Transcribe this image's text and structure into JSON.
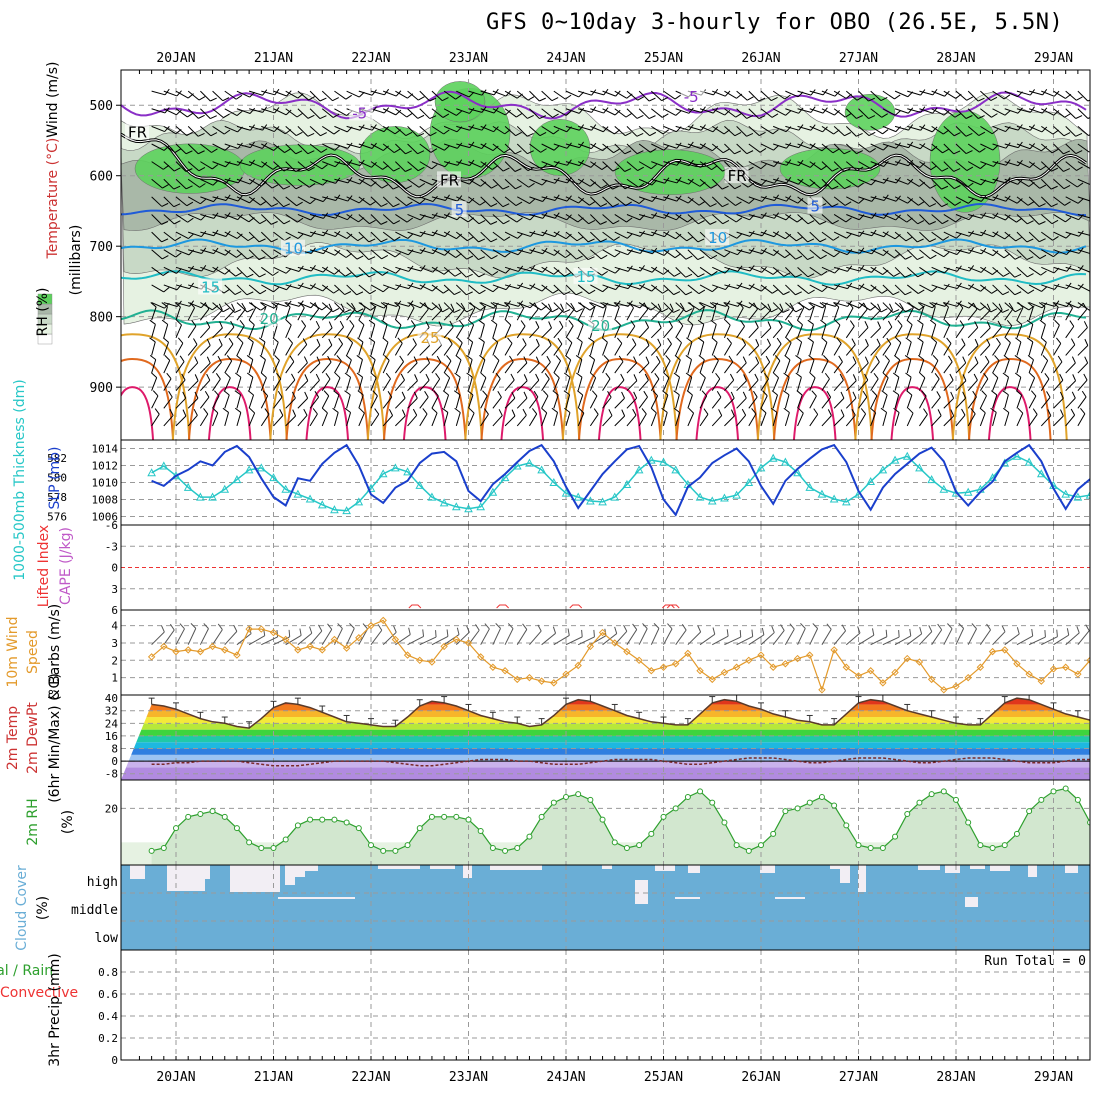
{
  "title": "GFS 0~10day 3-hourly for OBO (26.5E, 5.5N)",
  "dates": [
    "20JAN",
    "21JAN",
    "22JAN",
    "23JAN",
    "24JAN",
    "25JAN",
    "26JAN",
    "27JAN",
    "28JAN",
    "29JAN"
  ],
  "colors": {
    "rh_light": "#e6f2e2",
    "rh_mid": "#c8d9c6",
    "rh_dark": "#a9b8a8",
    "rh_green": "#5cd15c",
    "temp_neg5": "#8a2fc7",
    "temp_5": "#1f5bd8",
    "temp_10": "#1d98df",
    "temp_15": "#20bcc4",
    "temp_20": "#21b092",
    "temp_25": "#e0a32a",
    "temp_30": "#e0691e",
    "temp_35": "#de1a6a",
    "slp": "#1a3fcc",
    "thickness": "#27c7c7",
    "wind10m": "#e39a2b",
    "cloud": "#6aaed6",
    "rh2m": "#2ea02e"
  },
  "chart_data": [
    {
      "type": "heatmap",
      "panel": "upper-air",
      "ylabel_parts": [
        "Wind (m/s)",
        "Temperature (°C)",
        "RH (%)",
        "(millibars)"
      ],
      "ylabel_full": "Temperature (°C)Wind (m/s)",
      "y_ticks": [
        "500",
        "600",
        "700",
        "800",
        "900"
      ],
      "rh_levels": [
        "10",
        "30",
        "50",
        "70",
        "90"
      ],
      "contour_labels": [
        {
          "text": "-5",
          "day": 5.3,
          "p": 490,
          "color": "temp_neg5"
        },
        {
          "text": "-5",
          "day": 1.9,
          "p": 513,
          "color": "temp_neg5"
        },
        {
          "text": "FR",
          "day": -0.4,
          "p": 540,
          "color": "black"
        },
        {
          "text": "FR",
          "day": 2.8,
          "p": 608,
          "color": "black"
        },
        {
          "text": "FR",
          "day": 5.75,
          "p": 602,
          "color": "black"
        },
        {
          "text": "5",
          "day": 2.95,
          "p": 650,
          "color": "temp_5"
        },
        {
          "text": "5",
          "day": 6.6,
          "p": 645,
          "color": "temp_5"
        },
        {
          "text": "10",
          "day": 1.2,
          "p": 705,
          "color": "temp_10"
        },
        {
          "text": "10",
          "day": 5.55,
          "p": 690,
          "color": "temp_10"
        },
        {
          "text": "15",
          "day": 0.35,
          "p": 760,
          "color": "temp_15"
        },
        {
          "text": "15",
          "day": 4.2,
          "p": 745,
          "color": "temp_15"
        },
        {
          "text": "20",
          "day": 0.95,
          "p": 805,
          "color": "temp_20"
        },
        {
          "text": "20",
          "day": 4.35,
          "p": 815,
          "color": "temp_20"
        },
        {
          "text": "25",
          "day": 2.6,
          "p": 832,
          "color": "temp_25"
        }
      ]
    },
    {
      "type": "line",
      "panel": "slp-thickness",
      "ylabel_left": "1000-500mb Thickness (dm)",
      "ylabel_right": "SLP (mb)",
      "left_ticks": [
        "582",
        "580",
        "578",
        "576"
      ],
      "right_ticks": [
        "1014",
        "1012",
        "1010",
        "1008",
        "1006"
      ],
      "ylim_slp": [
        1005,
        1015
      ],
      "series": [
        {
          "name": "SLP (mb)",
          "values": [
            1010.2,
            1009.6,
            1010.8,
            1011.5,
            1012.5,
            1012.0,
            1013.6,
            1014.3,
            1013.0,
            1010.5,
            1008.3,
            1007.3,
            1010.5,
            1010.2,
            1012.2,
            1013.5,
            1014.4,
            1012.0,
            1008.6,
            1007.6,
            1009.4,
            1010.2,
            1012.3,
            1013.4,
            1013.6,
            1012.5,
            1009.0,
            1007.8,
            1009.8,
            1011.0,
            1012.4,
            1013.7,
            1014.4,
            1012.5,
            1009.5,
            1007.0,
            1009.0,
            1011.0,
            1012.5,
            1013.9,
            1014.3,
            1011.8,
            1008.0,
            1006.2,
            1009.5,
            1010.6,
            1012.3,
            1013.2,
            1014.0,
            1012.5,
            1009.6,
            1007.5,
            1010.2,
            1011.6,
            1012.8,
            1013.9,
            1014.4,
            1012.4,
            1009.0,
            1006.8,
            1009.4,
            1011.0,
            1012.2,
            1013.4,
            1014.1,
            1012.5,
            1008.9,
            1007.3,
            1008.9,
            1010.1,
            1012.5,
            1013.5,
            1014.4,
            1012.5,
            1009.3,
            1006.9,
            1009.2,
            1010.4,
            1011.6,
            1012.6,
            1014.3,
            1013.5,
            1009.6,
            1007.2,
            1009.0,
            1009.6,
            1012.3,
            1013.6,
            1014.3,
            1012.9,
            1009.5,
            1008.2,
            1010.6,
            1011.6,
            1012.5,
            1013.5,
            1014.4,
            1012.6,
            1009.6,
            1006.8,
            1009.0,
            1010.2,
            1011.2,
            1011.3,
            1013.5
          ]
        },
        {
          "name": "1000-500mb Thickness (dm)",
          "values": [
            580.5,
            581.2,
            580.2,
            579.0,
            578.0,
            578.0,
            578.8,
            579.8,
            580.8,
            581.0,
            580.0,
            578.8,
            578.3,
            577.8,
            577.2,
            576.7,
            576.6,
            577.5,
            578.9,
            580.4,
            581.0,
            580.6,
            579.2,
            578.0,
            577.4,
            577.0,
            576.8,
            577.0,
            578.5,
            580.0,
            581.2,
            581.5,
            580.8,
            579.5,
            578.4,
            578.0,
            577.6,
            577.5,
            578.0,
            579.3,
            580.8,
            581.8,
            581.6,
            580.8,
            579.3,
            578.0,
            577.6,
            577.9,
            578.2,
            579.5,
            581.0,
            582.0,
            581.6,
            580.5,
            579.0,
            578.3,
            577.8,
            577.5,
            578.3,
            579.6,
            580.8,
            581.8,
            582.2,
            581.0,
            579.8,
            578.8,
            578.4,
            578.5,
            578.8,
            580.0,
            581.5,
            582.2,
            581.6,
            580.4,
            579.2,
            578.3,
            578.0,
            578.2,
            578.8,
            580.2,
            581.6,
            582.5,
            582.0,
            580.8,
            579.0,
            578.4,
            578.2,
            578.3,
            579.5,
            581.2,
            582.0,
            581.4,
            580.1,
            579.0,
            578.6,
            578.5,
            579.3,
            580.4,
            581.5,
            582.0,
            581.4,
            580.2,
            579.0,
            578.6,
            578.3
          ]
        }
      ]
    },
    {
      "type": "line",
      "panel": "lifted-index-cape",
      "ylabel_left": "Lifted Index",
      "ylabel_right": "CAPE (J/kg)",
      "y_ticks": [
        "-6",
        "-3",
        "0",
        "3",
        "6"
      ],
      "ylim": [
        -6,
        6
      ],
      "series": [
        {
          "name": "Lifted Index",
          "values": []
        }
      ]
    },
    {
      "type": "line",
      "panel": "wind10m",
      "ylabel_parts": [
        "10m Wind",
        "Speed",
        "& Barbs",
        "(m/s)"
      ],
      "y_ticks": [
        "4",
        "3",
        "2",
        "1"
      ],
      "ylim": [
        0.0,
        4.9
      ],
      "series": [
        {
          "name": "10m Wind Speed",
          "values": [
            2.2,
            2.8,
            2.5,
            2.6,
            2.5,
            2.8,
            2.6,
            2.3,
            3.8,
            3.8,
            3.6,
            3.2,
            2.6,
            2.8,
            2.6,
            3.2,
            2.7,
            3.3,
            4.0,
            4.3,
            3.2,
            2.3,
            2.0,
            1.9,
            2.8,
            3.2,
            3.0,
            2.2,
            1.6,
            1.4,
            0.9,
            1.0,
            0.8,
            0.7,
            1.2,
            1.7,
            2.8,
            3.6,
            3.0,
            2.5,
            2.0,
            1.4,
            1.6,
            1.8,
            2.4,
            1.4,
            0.9,
            1.3,
            1.6,
            2.0,
            2.3,
            1.6,
            1.8,
            2.1,
            2.3,
            0.3,
            2.6,
            1.6,
            1.1,
            1.4,
            0.7,
            1.3,
            2.1,
            1.9,
            0.9,
            0.3,
            0.5,
            1.0,
            1.6,
            2.5,
            2.6,
            1.8,
            1.2,
            0.8,
            1.5,
            1.6,
            1.2,
            2.0,
            4.2,
            4.2,
            3.2,
            2.9,
            2.6,
            2.3,
            2.4,
            2.7,
            2.8,
            2.8,
            3.6,
            3.6,
            4.0,
            4.4,
            4.3,
            3.8,
            3.4,
            2.8,
            2.2,
            2.3,
            2.8,
            3.7,
            3.2,
            3.0,
            2.8,
            3.2,
            3.6
          ]
        }
      ]
    },
    {
      "type": "area",
      "panel": "temp2m",
      "ylabel_parts": [
        "2m Temp",
        "2m DewPt",
        "(6hr Min/Max)",
        "(°C)"
      ],
      "y_ticks": [
        "40",
        "32",
        "24",
        "16",
        "8",
        "0",
        "-8"
      ],
      "ylim": [
        -12,
        42
      ],
      "series": [
        {
          "name": "2m Temp",
          "values": [
            36,
            35,
            33,
            30,
            27,
            25,
            24,
            22,
            21,
            27,
            34,
            37,
            36,
            34,
            31,
            28,
            25,
            24,
            23,
            22,
            22,
            28,
            35,
            38,
            37,
            35,
            32,
            29,
            27,
            25,
            24,
            22,
            23,
            29,
            36,
            39,
            38,
            35,
            32,
            29,
            27,
            25,
            24,
            23,
            23,
            30,
            37,
            39,
            38,
            35,
            33,
            30,
            28,
            26,
            25,
            23,
            23,
            30,
            37,
            39,
            38,
            35,
            32,
            30,
            28,
            26,
            24,
            23,
            23,
            30,
            37,
            40,
            39,
            36,
            33,
            30,
            28,
            26,
            24,
            23,
            23,
            30,
            37,
            39,
            38,
            35,
            32,
            30,
            28,
            26,
            24,
            23,
            23,
            30,
            37,
            39,
            38,
            35,
            32,
            29,
            27,
            25,
            24,
            23,
            24
          ]
        },
        {
          "name": "2m DewPt",
          "values": [
            -2,
            -2,
            -1,
            -1,
            0,
            0,
            0,
            0,
            -1,
            -2,
            -3,
            -3,
            -3,
            -2,
            -1,
            0,
            0,
            0,
            0,
            0,
            -1,
            -2,
            -3,
            -3,
            -2,
            -1,
            0,
            1,
            1,
            1,
            0,
            0,
            -1,
            -2,
            -2,
            -2,
            -1,
            0,
            1,
            1,
            1,
            1,
            0,
            -1,
            -2,
            -2,
            -1,
            0,
            1,
            2,
            2,
            2,
            1,
            0,
            -1,
            -1,
            0,
            1,
            2,
            2,
            2,
            1,
            0,
            -1,
            -1,
            0,
            1,
            2,
            2,
            2,
            1,
            0,
            -1,
            -1,
            -1,
            0,
            1,
            1,
            1,
            1,
            0,
            -1,
            -2,
            -2,
            -1,
            0,
            0,
            1,
            1,
            0,
            0,
            -1,
            -2,
            -2,
            -2,
            -1,
            0,
            0,
            -1,
            -1,
            -2,
            -2,
            -3
          ]
        }
      ]
    },
    {
      "type": "line",
      "panel": "rh2m",
      "ylabel": "2m RH",
      "yunit": "(%)",
      "y_ticks": [
        "20"
      ],
      "ylim": [
        0,
        30
      ],
      "series": [
        {
          "name": "2m RH",
          "values": [
            5,
            6,
            13,
            17,
            18,
            19,
            17,
            13,
            8,
            6,
            6,
            9,
            14,
            16,
            16,
            16,
            15,
            13,
            7,
            5,
            5,
            7,
            13,
            17,
            17,
            17,
            16,
            12,
            6,
            5,
            6,
            10,
            17,
            22,
            24,
            25,
            23,
            16,
            8,
            6,
            7,
            11,
            17,
            20,
            24,
            26,
            22,
            15,
            7,
            5,
            7,
            11,
            19,
            20,
            22,
            24,
            21,
            14,
            7,
            6,
            6,
            10,
            18,
            22,
            25,
            26,
            23,
            15,
            7,
            6,
            7,
            11,
            19,
            23,
            26,
            27,
            23,
            15,
            7,
            6,
            6,
            10,
            16,
            17,
            17,
            16,
            16,
            11,
            6,
            5,
            5,
            7,
            13,
            15,
            16,
            17,
            16,
            12,
            6,
            5,
            6,
            10,
            16,
            18,
            18
          ]
        }
      ]
    },
    {
      "type": "heatmap",
      "panel": "cloud",
      "ylabel": "Cloud Cover",
      "yunit": "(%)",
      "layers": [
        "high",
        "middle",
        "low"
      ]
    },
    {
      "type": "bar",
      "panel": "precip",
      "ylabel_parts": [
        "Total / Rain",
        "Convective",
        "3hr Precip (mm)"
      ],
      "ylabel_total": "Total / Rain",
      "ylabel_conv": "Convective",
      "ylabel_precip": "3hr Precip (mm)",
      "y_ticks": [
        "0",
        "0.2",
        "0.4",
        "0.6",
        "0.8"
      ],
      "ylim": [
        0,
        1.0
      ],
      "annotation": "Run Total = 0",
      "values": []
    }
  ]
}
